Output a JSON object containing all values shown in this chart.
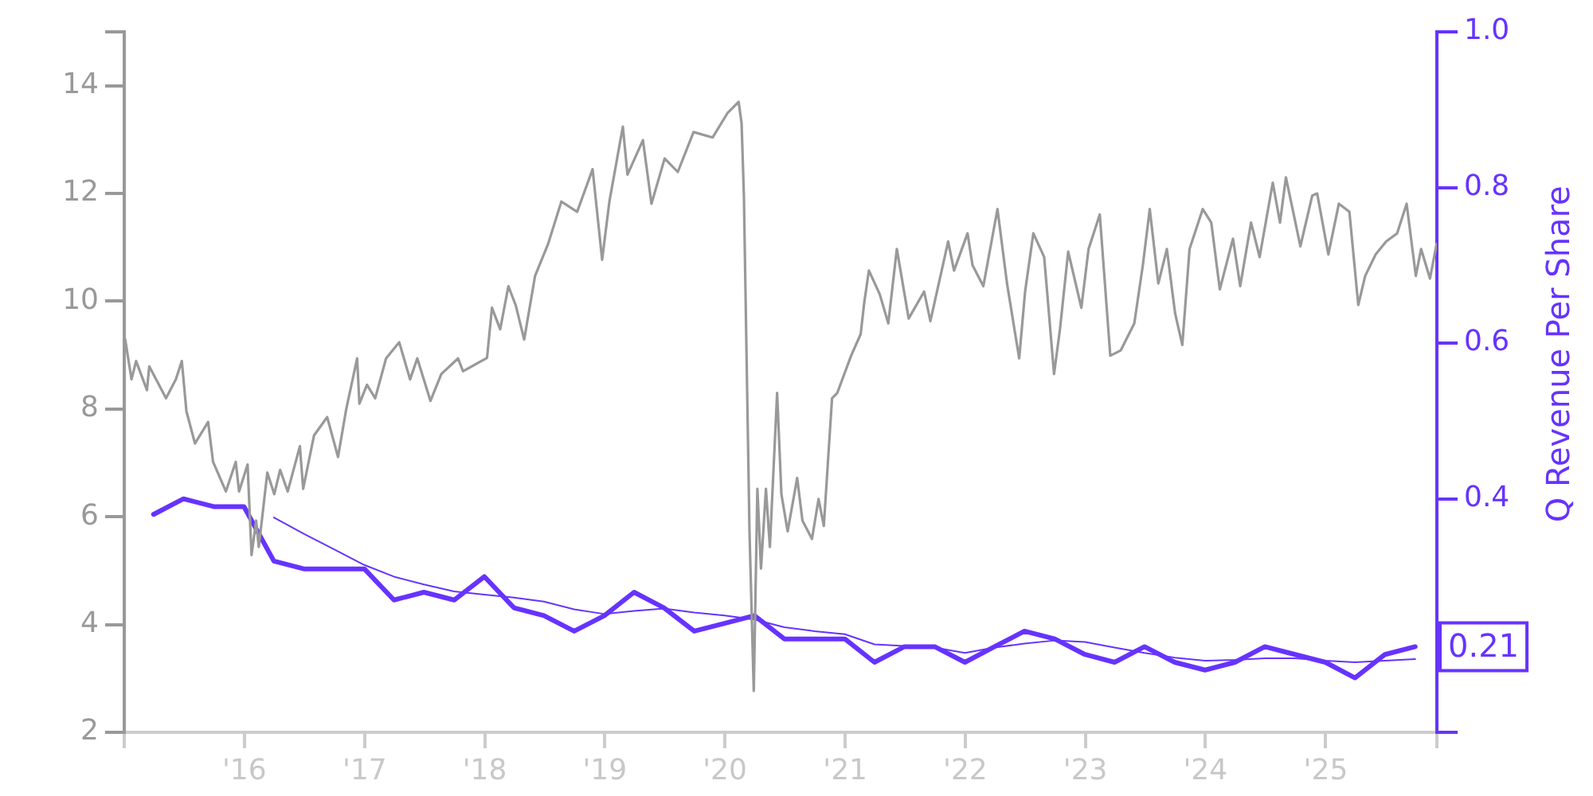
{
  "chart_data": {
    "type": "line",
    "y2label": "Q Revenue Per Share",
    "marker": "none",
    "xlim": [
      "2015-01-01",
      "2025-12-05"
    ],
    "xticks": [
      {
        "value": "2015-01-01",
        "label": null
      },
      {
        "value": "2016-01-01",
        "label": "'16"
      },
      {
        "value": "2017-01-01",
        "label": "'17"
      },
      {
        "value": "2018-01-01",
        "label": "'18"
      },
      {
        "value": "2019-01-01",
        "label": "'19"
      },
      {
        "value": "2020-01-01",
        "label": "'20"
      },
      {
        "value": "2021-01-01",
        "label": "'21"
      },
      {
        "value": "2022-01-01",
        "label": "'22"
      },
      {
        "value": "2023-01-01",
        "label": "'23"
      },
      {
        "value": "2024-01-01",
        "label": "'24"
      },
      {
        "value": "2025-01-01",
        "label": "'25"
      },
      {
        "value": "2025-12-05",
        "label": null
      }
    ],
    "ylim": [
      2,
      15
    ],
    "yticks": [
      2,
      4,
      6,
      8,
      10,
      12,
      14,
      {
        "value": 15,
        "label": null
      }
    ],
    "y2lim": [
      0.1,
      1.0
    ],
    "y2ticks": [
      {
        "value": 0.1,
        "label": null
      },
      {
        "value": 0.2,
        "label": null
      },
      0.4,
      0.6,
      0.8,
      {
        "value": 1,
        "label": "1.0"
      }
    ],
    "series": [
      {
        "color": "#999999",
        "x": [
          "2015-01-04",
          "2015-01-23",
          "2015-02-06",
          "2015-03-11",
          "2015-03-18",
          "2015-05-08",
          "2015-06-07",
          "2015-06-25",
          "2015-07-09",
          "2015-08-04",
          "2015-09-13",
          "2015-09-28",
          "2015-11-06",
          "2015-12-06",
          "2015-12-16",
          "2016-01-11",
          "2016-01-23",
          "2016-02-06",
          "2016-02-14",
          "2016-03-11",
          "2016-04-01",
          "2016-04-19",
          "2016-05-12",
          "2016-06-18",
          "2016-06-28",
          "2016-07-31",
          "2016-09-09",
          "2016-10-12",
          "2016-11-06",
          "2016-12-09",
          "2016-12-16",
          "2017-01-08",
          "2017-02-02",
          "2017-03-07",
          "2017-04-16",
          "2017-05-19",
          "2017-06-10",
          "2017-07-20",
          "2017-08-22",
          "2017-10-12",
          "2017-10-27",
          "2018-01-08",
          "2018-01-23",
          "2018-02-17",
          "2018-03-14",
          "2018-04-05",
          "2018-05-01",
          "2018-06-03",
          "2018-07-13",
          "2018-08-22",
          "2018-10-09",
          "2018-11-25",
          "2018-12-24",
          "2019-01-15",
          "2019-02-25",
          "2019-03-11",
          "2019-04-27",
          "2019-05-23",
          "2019-07-02",
          "2019-08-11",
          "2019-09-28",
          "2019-11-25",
          "2020-01-10",
          "2020-02-12",
          "2020-02-21",
          "2020-02-28",
          "2020-03-16",
          "2020-03-29",
          "2020-04-09",
          "2020-04-20",
          "2020-05-05",
          "2020-05-17",
          "2020-06-08",
          "2020-06-21",
          "2020-07-10",
          "2020-08-08",
          "2020-08-24",
          "2020-09-22",
          "2020-10-12",
          "2020-10-28",
          "2020-11-22",
          "2020-12-08",
          "2021-01-19",
          "2021-02-17",
          "2021-02-28",
          "2021-03-14",
          "2021-04-16",
          "2021-05-12",
          "2021-06-07",
          "2021-07-13",
          "2021-08-29",
          "2021-09-17",
          "2021-11-10",
          "2021-11-28",
          "2022-01-08",
          "2022-01-23",
          "2022-02-25",
          "2022-04-09",
          "2022-05-08",
          "2022-06-14",
          "2022-07-02",
          "2022-07-27",
          "2022-08-29",
          "2022-09-28",
          "2022-10-16",
          "2022-11-10",
          "2022-12-20",
          "2023-01-11",
          "2023-02-14",
          "2023-03-18",
          "2023-04-19",
          "2023-05-30",
          "2023-06-25",
          "2023-07-16",
          "2023-08-11",
          "2023-09-06",
          "2023-10-01",
          "2023-10-23",
          "2023-11-14",
          "2023-12-24",
          "2024-01-19",
          "2024-02-14",
          "2024-03-25",
          "2024-04-16",
          "2024-05-19",
          "2024-06-14",
          "2024-07-24",
          "2024-08-15",
          "2024-09-02",
          "2024-10-16",
          "2024-11-21",
          "2024-12-06",
          "2025-01-09",
          "2025-02-10",
          "2025-03-14",
          "2025-04-10",
          "2025-05-01",
          "2025-06-02",
          "2025-07-04",
          "2025-08-06",
          "2025-09-04",
          "2025-10-02",
          "2025-10-18",
          "2025-11-14",
          "2025-12-04"
        ],
        "values": [
          9.29,
          8.55,
          8.89,
          8.35,
          8.79,
          8.2,
          8.55,
          8.89,
          7.96,
          7.36,
          7.76,
          7.02,
          6.47,
          7.02,
          6.47,
          6.97,
          5.29,
          5.93,
          5.44,
          6.82,
          6.42,
          6.87,
          6.47,
          7.31,
          6.52,
          7.51,
          7.85,
          7.11,
          8.0,
          8.94,
          8.1,
          8.45,
          8.2,
          8.94,
          9.24,
          8.55,
          8.94,
          8.15,
          8.65,
          8.94,
          8.7,
          8.95,
          9.88,
          9.48,
          10.28,
          9.93,
          9.29,
          10.47,
          11.07,
          11.85,
          11.66,
          12.45,
          10.77,
          11.85,
          13.24,
          12.35,
          12.99,
          11.81,
          12.65,
          12.4,
          13.14,
          13.04,
          13.5,
          13.7,
          13.3,
          11.96,
          5.73,
          2.77,
          6.52,
          5.04,
          6.52,
          5.44,
          8.3,
          6.42,
          5.73,
          6.72,
          5.93,
          5.59,
          6.33,
          5.83,
          8.2,
          8.3,
          8.99,
          9.39,
          9.98,
          10.57,
          10.13,
          9.59,
          10.97,
          9.68,
          10.18,
          9.63,
          11.11,
          10.57,
          11.26,
          10.67,
          10.28,
          11.71,
          10.33,
          8.94,
          10.18,
          11.26,
          10.82,
          8.65,
          9.48,
          10.92,
          9.88,
          10.97,
          11.61,
          8.99,
          9.09,
          9.59,
          10.67,
          11.71,
          10.33,
          10.97,
          9.78,
          9.19,
          10.97,
          11.71,
          11.46,
          10.22,
          11.16,
          10.28,
          11.46,
          10.82,
          12.2,
          11.46,
          12.3,
          11.02,
          11.96,
          12.0,
          10.87,
          11.81,
          11.66,
          9.93,
          10.47,
          10.87,
          11.11,
          11.26,
          11.81,
          10.47,
          10.97,
          10.42,
          11.06
        ]
      },
      {
        "color": "#6633ff",
        "axis": "y2",
        "x": [
          "2015-03-31",
          "2015-06-30",
          "2015-09-30",
          "2015-12-31",
          "2016-03-31",
          "2016-06-30",
          "2016-09-30",
          "2016-12-31",
          "2017-03-31",
          "2017-06-30",
          "2017-09-30",
          "2017-12-31",
          "2018-03-31",
          "2018-06-30",
          "2018-09-30",
          "2018-12-31",
          "2019-03-31",
          "2019-06-30",
          "2019-09-30",
          "2019-12-31",
          "2020-03-31",
          "2020-06-30",
          "2020-09-30",
          "2020-12-31",
          "2021-03-31",
          "2021-06-30",
          "2021-09-30",
          "2021-12-31",
          "2022-03-31",
          "2022-06-30",
          "2022-09-30",
          "2022-12-31",
          "2023-03-31",
          "2023-06-30",
          "2023-09-30",
          "2023-12-31",
          "2024-03-31",
          "2024-06-30",
          "2024-09-30",
          "2024-12-31",
          "2025-03-31",
          "2025-06-30",
          "2025-09-30"
        ],
        "values": [
          0.38,
          0.4,
          0.39,
          0.39,
          0.32,
          0.31,
          0.31,
          0.31,
          0.27,
          0.28,
          0.27,
          0.3,
          0.26,
          0.25,
          0.23,
          0.25,
          0.28,
          0.26,
          0.23,
          0.24,
          0.25,
          0.22,
          0.22,
          0.22,
          0.19,
          0.21,
          0.21,
          0.19,
          0.21,
          0.23,
          0.22,
          0.2,
          0.19,
          0.21,
          0.19,
          0.18,
          0.19,
          0.21,
          0.2,
          0.19,
          0.17,
          0.2,
          0.21
        ],
        "value_labels": [
          null,
          null,
          null,
          null,
          null,
          null,
          null,
          null,
          null,
          null,
          null,
          null,
          null,
          null,
          null,
          null,
          null,
          null,
          null,
          null,
          null,
          null,
          null,
          null,
          null,
          null,
          null,
          null,
          null,
          null,
          null,
          null,
          null,
          null,
          null,
          null,
          null,
          null,
          null,
          null,
          null,
          null,
          "0.21"
        ]
      },
      {
        "color": "#6633ff",
        "axis": "y2",
        "x": [
          "2016-03-31",
          "2016-06-30",
          "2016-09-30",
          "2016-12-31",
          "2017-03-31",
          "2017-06-30",
          "2017-09-30",
          "2017-12-31",
          "2018-03-31",
          "2018-06-30",
          "2018-09-30",
          "2018-12-31",
          "2019-03-31",
          "2019-06-30",
          "2019-09-30",
          "2019-12-31",
          "2020-03-31",
          "2020-06-30",
          "2020-09-30",
          "2020-12-31",
          "2021-03-31",
          "2021-06-30",
          "2021-09-30",
          "2021-12-31",
          "2022-03-31",
          "2022-06-30",
          "2022-09-30",
          "2022-12-31",
          "2023-03-31",
          "2023-06-30",
          "2023-09-30",
          "2023-12-31",
          "2024-03-31",
          "2024-06-30",
          "2024-09-30",
          "2024-12-31",
          "2025-03-31",
          "2025-06-30",
          "2025-09-30"
        ],
        "values": [
          0.376,
          0.355,
          0.335,
          0.315,
          0.3,
          0.29,
          0.281,
          0.277,
          0.273,
          0.268,
          0.258,
          0.252,
          0.256,
          0.259,
          0.254,
          0.25,
          0.245,
          0.235,
          0.23,
          0.226,
          0.213,
          0.211,
          0.209,
          0.202,
          0.209,
          0.214,
          0.218,
          0.216,
          0.209,
          0.202,
          0.196,
          0.192,
          0.193,
          0.195,
          0.195,
          0.192,
          0.19,
          0.192,
          0.194
        ]
      }
    ]
  }
}
